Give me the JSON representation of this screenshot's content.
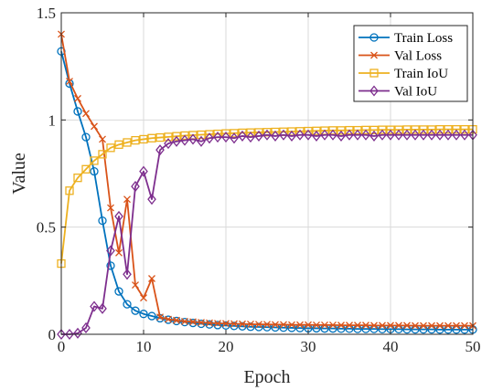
{
  "chart_data": {
    "type": "line",
    "xlabel": "Epoch",
    "ylabel": "Value",
    "xlim": [
      0,
      50
    ],
    "ylim": [
      0,
      1.5
    ],
    "xticks": [
      "0",
      "10",
      "20",
      "30",
      "40",
      "50"
    ],
    "yticks": [
      "0",
      "0.5",
      "1",
      "1.5"
    ],
    "grid": true,
    "legend_position": "top-right",
    "x": [
      0,
      1,
      2,
      3,
      4,
      5,
      6,
      7,
      8,
      9,
      10,
      11,
      12,
      13,
      14,
      15,
      16,
      17,
      18,
      19,
      20,
      21,
      22,
      23,
      24,
      25,
      26,
      27,
      28,
      29,
      30,
      31,
      32,
      33,
      34,
      35,
      36,
      37,
      38,
      39,
      40,
      41,
      42,
      43,
      44,
      45,
      46,
      47,
      48,
      49,
      50
    ],
    "series": [
      {
        "name": "Train Loss",
        "color": "#0072BD",
        "marker": "circle",
        "values": [
          1.32,
          1.17,
          1.04,
          0.92,
          0.76,
          0.53,
          0.32,
          0.2,
          0.14,
          0.11,
          0.095,
          0.085,
          0.075,
          0.068,
          0.062,
          0.057,
          0.053,
          0.049,
          0.046,
          0.043,
          0.041,
          0.039,
          0.037,
          0.035,
          0.034,
          0.033,
          0.032,
          0.031,
          0.03,
          0.029,
          0.028,
          0.028,
          0.027,
          0.027,
          0.026,
          0.026,
          0.025,
          0.025,
          0.025,
          0.024,
          0.024,
          0.024,
          0.023,
          0.023,
          0.023,
          0.023,
          0.022,
          0.022,
          0.022,
          0.022,
          0.022
        ]
      },
      {
        "name": "Val Loss",
        "color": "#D95319",
        "marker": "x",
        "values": [
          1.4,
          1.18,
          1.1,
          1.03,
          0.97,
          0.91,
          0.59,
          0.38,
          0.63,
          0.23,
          0.17,
          0.26,
          0.08,
          0.07,
          0.065,
          0.06,
          0.058,
          0.055,
          0.053,
          0.051,
          0.05,
          0.049,
          0.048,
          0.047,
          0.046,
          0.046,
          0.045,
          0.045,
          0.044,
          0.044,
          0.044,
          0.043,
          0.043,
          0.043,
          0.042,
          0.042,
          0.042,
          0.042,
          0.041,
          0.041,
          0.041,
          0.041,
          0.041,
          0.04,
          0.04,
          0.04,
          0.04,
          0.04,
          0.04,
          0.04,
          0.04
        ]
      },
      {
        "name": "Train IoU",
        "color": "#EDB120",
        "marker": "square",
        "values": [
          0.33,
          0.67,
          0.73,
          0.77,
          0.81,
          0.84,
          0.87,
          0.885,
          0.895,
          0.905,
          0.91,
          0.915,
          0.918,
          0.921,
          0.924,
          0.927,
          0.929,
          0.931,
          0.933,
          0.935,
          0.937,
          0.938,
          0.94,
          0.941,
          0.942,
          0.943,
          0.944,
          0.945,
          0.946,
          0.947,
          0.948,
          0.949,
          0.95,
          0.951,
          0.951,
          0.952,
          0.952,
          0.953,
          0.953,
          0.954,
          0.954,
          0.954,
          0.955,
          0.955,
          0.955,
          0.955,
          0.956,
          0.956,
          0.956,
          0.956,
          0.956
        ]
      },
      {
        "name": "Val IoU",
        "color": "#7E2F8E",
        "marker": "diamond",
        "values": [
          0.0,
          0.0,
          0.005,
          0.03,
          0.13,
          0.12,
          0.39,
          0.55,
          0.28,
          0.69,
          0.76,
          0.63,
          0.86,
          0.89,
          0.9,
          0.905,
          0.91,
          0.9,
          0.915,
          0.92,
          0.92,
          0.915,
          0.925,
          0.92,
          0.925,
          0.93,
          0.925,
          0.93,
          0.925,
          0.93,
          0.93,
          0.925,
          0.93,
          0.93,
          0.925,
          0.93,
          0.93,
          0.93,
          0.925,
          0.93,
          0.93,
          0.93,
          0.93,
          0.93,
          0.93,
          0.93,
          0.93,
          0.93,
          0.93,
          0.93,
          0.93
        ]
      }
    ]
  }
}
